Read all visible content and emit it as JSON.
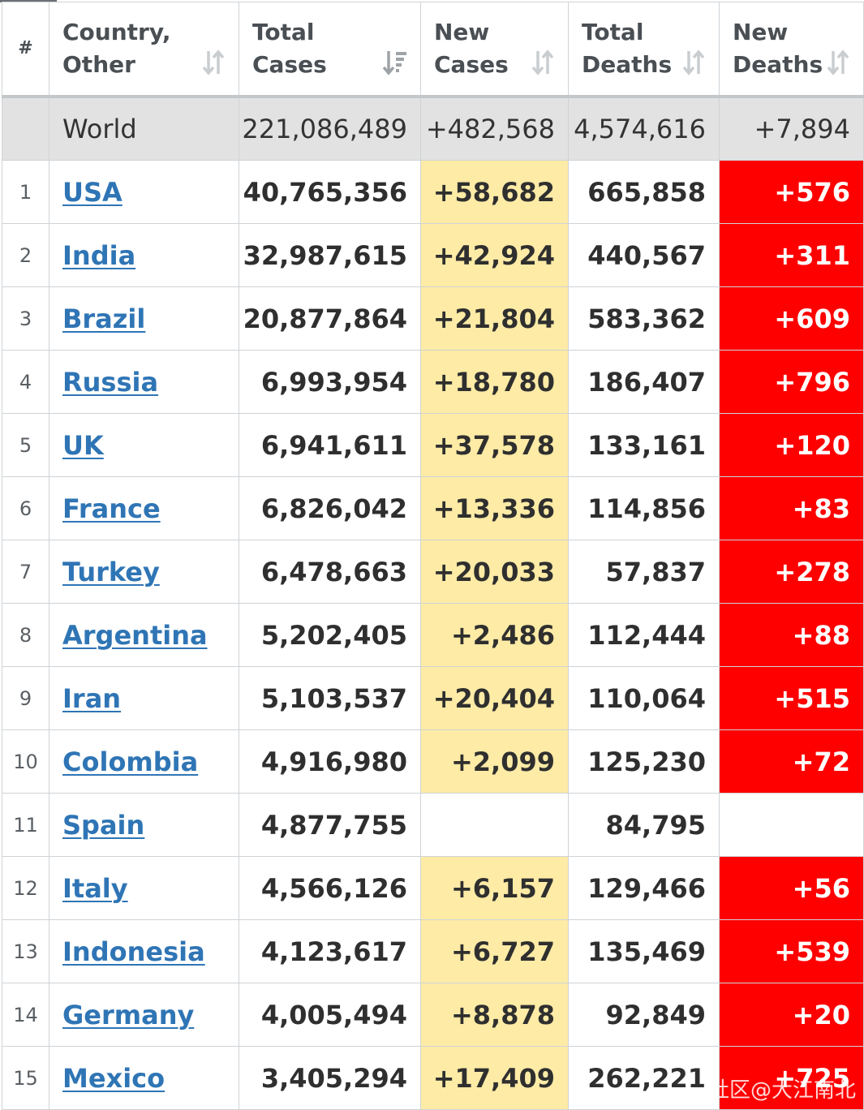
{
  "header": {
    "rank": "#",
    "country": [
      "Country,",
      "Other"
    ],
    "total_cases": [
      "Total",
      "Cases"
    ],
    "new_cases": [
      "New",
      "Cases"
    ],
    "total_deaths": [
      "Total",
      "Deaths"
    ],
    "new_deaths": [
      "New",
      "Deaths"
    ],
    "sort_icon": "sort-arrows-icon",
    "active_sort_icon": "sort-descending-icon"
  },
  "world": {
    "country": "World",
    "total_cases": "221,086,489",
    "new_cases": "+482,568",
    "total_deaths": "4,574,616",
    "new_deaths": "+7,894"
  },
  "rows": [
    {
      "rank": "1",
      "country": "USA",
      "total_cases": "40,765,356",
      "new_cases": "+58,682",
      "total_deaths": "665,858",
      "new_deaths": "+576"
    },
    {
      "rank": "2",
      "country": "India",
      "total_cases": "32,987,615",
      "new_cases": "+42,924",
      "total_deaths": "440,567",
      "new_deaths": "+311"
    },
    {
      "rank": "3",
      "country": "Brazil",
      "total_cases": "20,877,864",
      "new_cases": "+21,804",
      "total_deaths": "583,362",
      "new_deaths": "+609"
    },
    {
      "rank": "4",
      "country": "Russia",
      "total_cases": "6,993,954",
      "new_cases": "+18,780",
      "total_deaths": "186,407",
      "new_deaths": "+796"
    },
    {
      "rank": "5",
      "country": "UK",
      "total_cases": "6,941,611",
      "new_cases": "+37,578",
      "total_deaths": "133,161",
      "new_deaths": "+120"
    },
    {
      "rank": "6",
      "country": "France",
      "total_cases": "6,826,042",
      "new_cases": "+13,336",
      "total_deaths": "114,856",
      "new_deaths": "+83"
    },
    {
      "rank": "7",
      "country": "Turkey",
      "total_cases": "6,478,663",
      "new_cases": "+20,033",
      "total_deaths": "57,837",
      "new_deaths": "+278"
    },
    {
      "rank": "8",
      "country": "Argentina",
      "total_cases": "5,202,405",
      "new_cases": "+2,486",
      "total_deaths": "112,444",
      "new_deaths": "+88"
    },
    {
      "rank": "9",
      "country": "Iran",
      "total_cases": "5,103,537",
      "new_cases": "+20,404",
      "total_deaths": "110,064",
      "new_deaths": "+515"
    },
    {
      "rank": "10",
      "country": "Colombia",
      "total_cases": "4,916,980",
      "new_cases": "+2,099",
      "total_deaths": "125,230",
      "new_deaths": "+72"
    },
    {
      "rank": "11",
      "country": "Spain",
      "total_cases": "4,877,755",
      "new_cases": "",
      "total_deaths": "84,795",
      "new_deaths": ""
    },
    {
      "rank": "12",
      "country": "Italy",
      "total_cases": "4,566,126",
      "new_cases": "+6,157",
      "total_deaths": "129,466",
      "new_deaths": "+56"
    },
    {
      "rank": "13",
      "country": "Indonesia",
      "total_cases": "4,123,617",
      "new_cases": "+6,727",
      "total_deaths": "135,469",
      "new_deaths": "+539"
    },
    {
      "rank": "14",
      "country": "Germany",
      "total_cases": "4,005,494",
      "new_cases": "+8,878",
      "total_deaths": "92,849",
      "new_deaths": "+20"
    },
    {
      "rank": "15",
      "country": "Mexico",
      "total_cases": "3,405,294",
      "new_cases": "+17,409",
      "total_deaths": "262,221",
      "new_deaths": "+725"
    }
  ],
  "colors": {
    "new_cases_fill": "#fdeba6",
    "new_deaths_fill": "#ff0000",
    "link": "#2f75b5",
    "world_row": "#e2e2e2"
  },
  "watermark": "社区@大江南北"
}
